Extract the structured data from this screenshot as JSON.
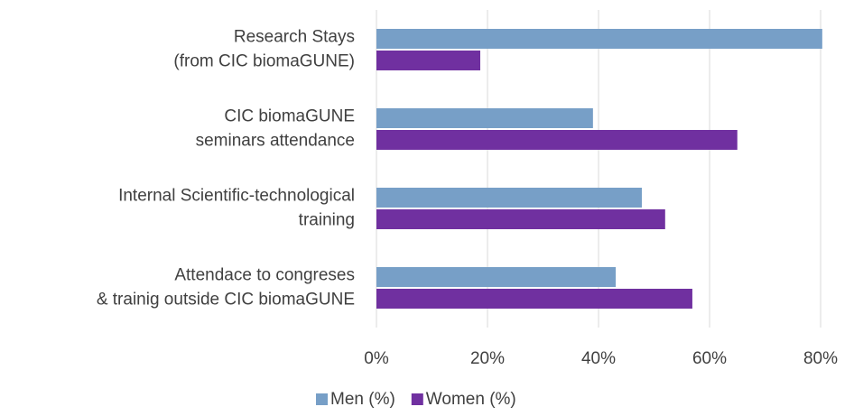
{
  "chart_data": {
    "type": "hbar",
    "categories": [
      [
        "Research Stays",
        "(from CIC biomaGUNE)"
      ],
      [
        "CIC biomaGUNE",
        "seminars attendance"
      ],
      [
        "Internal Scientific-technological",
        "training"
      ],
      [
        "Attendace to congreses",
        "& trainig outside CIC biomaGUNE"
      ]
    ],
    "series": [
      {
        "name": "Men (%)",
        "color": "#779fc7",
        "values": [
          80.3,
          39,
          47.8,
          43.1
        ]
      },
      {
        "name": "Women (%)",
        "color": "#7030a0",
        "values": [
          18.7,
          65,
          52,
          56.9
        ]
      }
    ],
    "xlim": [
      0,
      85
    ],
    "xticks": [
      {
        "value": 0,
        "label": "0%"
      },
      {
        "value": 20,
        "label": "20%"
      },
      {
        "value": 40,
        "label": "40%"
      },
      {
        "value": 60,
        "label": "60%"
      },
      {
        "value": 80,
        "label": "80%"
      }
    ],
    "grid": true,
    "legend": "bottom"
  }
}
